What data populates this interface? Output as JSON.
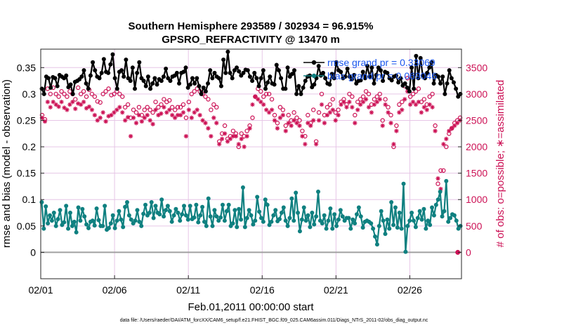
{
  "chart_data": {
    "type": "line",
    "title_line1": "Southern Hemisphere 293589 / 302934 = 96.915%",
    "title_line2": "GPSRO_REFRACTIVITY @ 13470 m",
    "xlabel": "Feb.01,2011 00:00:00 start",
    "ylabel": "rmse and bias (model - observation)",
    "ylabel_right": "# of obs: o=possible; ∗=assimilated",
    "xlim": [
      0,
      28.5
    ],
    "ylim": [
      -0.05,
      0.385
    ],
    "ylim_right": [
      -500,
      3850
    ],
    "x_ticks": [
      0,
      5,
      10,
      15,
      20,
      25
    ],
    "x_tick_labels": [
      "02/01",
      "02/06",
      "02/11",
      "02/16",
      "02/21",
      "02/26"
    ],
    "y_ticks": [
      0,
      0.05,
      0.1,
      0.15,
      0.2,
      0.25,
      0.3,
      0.35
    ],
    "y_tick_labels": [
      "0",
      "0.05",
      "0.1",
      "0.15",
      "0.2",
      "0.25",
      "0.3",
      "0.35"
    ],
    "y_right_ticks": [
      0,
      500,
      1000,
      1500,
      2000,
      2500,
      3000,
      3500
    ],
    "y_right_tick_labels": [
      "0",
      "500",
      "1000",
      "1500",
      "2000",
      "2500",
      "3000",
      "3500"
    ],
    "colors": {
      "rmse": "#000000",
      "bias": "#0f8080",
      "obs": "#cc1155",
      "zero_line": "#a0a0a0",
      "grid": "#e6c6e6"
    },
    "legend": [
      {
        "label": "rmse grand pr = 0.33069",
        "series": "rmse"
      },
      {
        "label": "bias grand pr = 0.069046",
        "series": "bias"
      }
    ],
    "series": [
      {
        "name": "rmse",
        "axis": "left",
        "marker": "filled-circle",
        "values": [
          0.31,
          0.3,
          0.333,
          0.33,
          0.312,
          0.332,
          0.33,
          0.315,
          0.336,
          0.333,
          0.33,
          0.335,
          0.313,
          0.318,
          0.3,
          0.323,
          0.325,
          0.328,
          0.333,
          0.345,
          0.32,
          0.31,
          0.335,
          0.36,
          0.345,
          0.333,
          0.33,
          0.34,
          0.366,
          0.342,
          0.34,
          0.356,
          0.375,
          0.33,
          0.31,
          0.342,
          0.345,
          0.333,
          0.365,
          0.33,
          0.325,
          0.35,
          0.31,
          0.34,
          0.36,
          0.33,
          0.325,
          0.315,
          0.333,
          0.31,
          0.32,
          0.33,
          0.318,
          0.328,
          0.325,
          0.333,
          0.348,
          0.33,
          0.325,
          0.333,
          0.335,
          0.34,
          0.32,
          0.34,
          0.342,
          0.35,
          0.312,
          0.318,
          0.33,
          0.32,
          0.33,
          0.315,
          0.3,
          0.312,
          0.305,
          0.32,
          0.345,
          0.33,
          0.34,
          0.333,
          0.33,
          0.315,
          0.365,
          0.34,
          0.38,
          0.34,
          0.33,
          0.345,
          0.35,
          0.343,
          0.335,
          0.34,
          0.346,
          0.345,
          0.333,
          0.325,
          0.34,
          0.33,
          0.315,
          0.33,
          0.345,
          0.31,
          0.322,
          0.333,
          0.32,
          0.318,
          0.355,
          0.345,
          0.33,
          0.31,
          0.31,
          0.35,
          0.333,
          0.338,
          0.345,
          0.3,
          0.315,
          0.3,
          0.312,
          0.325,
          0.333,
          0.335,
          0.313,
          0.318,
          0.33,
          0.353,
          0.335,
          0.34,
          0.33,
          0.32,
          0.318,
          0.338,
          0.33,
          0.36,
          0.345,
          0.342,
          0.33,
          0.333,
          0.348,
          0.333,
          0.328,
          0.336,
          0.32,
          0.325,
          0.326,
          0.342,
          0.33,
          0.353,
          0.333,
          0.35,
          0.32,
          0.336,
          0.35,
          0.345,
          0.325,
          0.342,
          0.34,
          0.33,
          0.326,
          0.333,
          0.335,
          0.322,
          0.33,
          0.316,
          0.32,
          0.312,
          0.305,
          0.35,
          0.31,
          0.372,
          0.33,
          0.368,
          0.335,
          0.33,
          0.34,
          0.35,
          0.36,
          0.32,
          0.336,
          0.333,
          0.32,
          0.333,
          0.3,
          0.32,
          0.345,
          0.33,
          0.322,
          0.31,
          0.295,
          0.3
        ]
      },
      {
        "name": "bias",
        "axis": "left",
        "marker": "filled-circle",
        "values": [
          0.095,
          0.045,
          0.087,
          0.055,
          0.07,
          0.06,
          0.075,
          0.05,
          0.063,
          0.08,
          0.052,
          0.057,
          0.088,
          0.045,
          0.075,
          0.05,
          0.058,
          0.038,
          0.085,
          0.06,
          0.082,
          0.068,
          0.053,
          0.046,
          0.058,
          0.06,
          0.051,
          0.083,
          0.061,
          0.05,
          0.05,
          0.088,
          0.043,
          0.046,
          0.055,
          0.07,
          0.046,
          0.06,
          0.078,
          0.062,
          0.048,
          0.086,
          0.095,
          0.07,
          0.062,
          0.055,
          0.06,
          0.08,
          0.058,
          0.05,
          0.073,
          0.09,
          0.07,
          0.075,
          0.095,
          0.065,
          0.088,
          0.075,
          0.072,
          0.1,
          0.068,
          0.08,
          0.088,
          0.078,
          0.058,
          0.07,
          0.082,
          0.075,
          0.06,
          0.072,
          0.088,
          0.07,
          0.062,
          0.088,
          0.063,
          0.066,
          0.09,
          0.057,
          0.07,
          0.086,
          0.058,
          0.05,
          0.102,
          0.068,
          0.05,
          0.08,
          0.068,
          0.06,
          0.066,
          0.09,
          0.06,
          0.078,
          0.09,
          0.05,
          0.055,
          0.08,
          0.048,
          0.082,
          0.062,
          0.123,
          0.048,
          0.065,
          0.08,
          0.07,
          0.053,
          0.06,
          0.105,
          0.077,
          0.065,
          0.058,
          0.1,
          0.09,
          0.052,
          0.058,
          0.07,
          0.08,
          0.059,
          0.063,
          0.075,
          0.085,
          0.06,
          0.05,
          0.065,
          0.102,
          0.06,
          0.113,
          0.075,
          0.04,
          0.062,
          0.085,
          0.06,
          0.07,
          0.048,
          0.075,
          0.053,
          0.068,
          0.115,
          0.06,
          0.055,
          0.07,
          0.045,
          0.06,
          0.083,
          0.045,
          0.072,
          0.05,
          0.062,
          0.08,
          0.068,
          0.06,
          0.065,
          0.065,
          0.045,
          0.062,
          0.055,
          0.072,
          0.085,
          0.068,
          0.047,
          0.058,
          0.06,
          0.058,
          0.055,
          0.045,
          0.03,
          0.015,
          0.05,
          0.078,
          0.06,
          0.035,
          0.062,
          0.045,
          0.095,
          0.052,
          0.085,
          0.047,
          0.075,
          0.045,
          0.13,
          0.001,
          0.05,
          0.06,
          0.075,
          0.06,
          0.048,
          0.065,
          0.078,
          0.062,
          0.082,
          0.045,
          0.06,
          0.052,
          0.085,
          0.07,
          0.09,
          0.1,
          0.115,
          0.068,
          0.078,
          0.135,
          0.058,
          0.065,
          0.072,
          0.07,
          0.06,
          0.045,
          0.05
        ]
      },
      {
        "name": "obs_possible",
        "axis": "right",
        "marker": "open-circle",
        "values": [
          2600,
          2520,
          3100,
          3000,
          3120,
          3000,
          2950,
          3050,
          3000,
          2950,
          3050,
          3000,
          2900,
          3120,
          3000,
          3050,
          2950,
          3080,
          3000,
          2950,
          2860,
          2840,
          3000,
          3050,
          3100,
          2980,
          3000,
          3050,
          3000,
          2950,
          2750,
          2800,
          2550,
          2700,
          2650,
          2750,
          2600,
          2700,
          2750,
          2700,
          2650,
          2850,
          2750,
          2800,
          2900,
          2850,
          2880,
          2750,
          2700,
          2750,
          2750,
          2800,
          2550,
          2850,
          3000,
          3050,
          3100,
          3050,
          3000,
          2950,
          2900,
          2700,
          2800,
          2750,
          2100,
          2250,
          2400,
          2150,
          2200,
          2300,
          2250,
          2000,
          2250,
          2200,
          2300,
          2400,
          2550,
          2950,
          3100,
          3050,
          2950,
          3000,
          3000,
          2900,
          2600,
          2450,
          2750,
          2700,
          2400,
          2600,
          2500,
          2650,
          2550,
          2500,
          2300,
          2200,
          2600,
          2450,
          2700,
          2100,
          2650,
          3000,
          2600,
          2750,
          2800,
          2900,
          2650,
          2700,
          2850,
          2900,
          2800,
          3000,
          2950,
          2600,
          2850,
          2900,
          2950,
          3050,
          3000,
          2800,
          2900,
          2950,
          3000,
          2500,
          2900,
          2750,
          2600,
          2000,
          2400,
          2800,
          2850,
          3150,
          3300,
          2950,
          3000,
          3050,
          3100,
          2850,
          2900,
          2800,
          2950,
          3000,
          2400,
          1300,
          1550,
          1550,
          2000,
          2250,
          2350,
          2450,
          2500,
          2550
        ]
      },
      {
        "name": "obs_assimilated",
        "axis": "right",
        "marker": "asterisk",
        "values": [
          2550,
          2480,
          2850,
          2750,
          2850,
          2800,
          2760,
          2850,
          2740,
          2700,
          2800,
          2850,
          2720,
          2820,
          2800,
          2850,
          2730,
          2760,
          2700,
          2600,
          2500,
          2550,
          2650,
          2480,
          2580,
          2600,
          2650,
          2700,
          2750,
          2650,
          2500,
          2560,
          2200,
          2550,
          2450,
          2600,
          2480,
          2550,
          2600,
          2500,
          2430,
          2700,
          2600,
          2630,
          2750,
          2650,
          2700,
          2600,
          2550,
          2600,
          2600,
          2650,
          2200,
          2700,
          2550,
          2650,
          2700,
          2600,
          2500,
          2450,
          2350,
          2200,
          2550,
          2450,
          2050,
          2150,
          2250,
          2100,
          2150,
          2200,
          2200,
          2050,
          2150,
          2000,
          2200,
          2350,
          2800,
          2950,
          2900,
          2850,
          2800,
          2700,
          2650,
          2700,
          2500,
          2350,
          2550,
          2600,
          2300,
          2450,
          2400,
          2500,
          2450,
          2400,
          2200,
          2050,
          2450,
          2400,
          2500,
          2050,
          2500,
          2800,
          2450,
          2600,
          2650,
          2700,
          2500,
          2600,
          2800,
          2850,
          2750,
          2850,
          2750,
          2450,
          2700,
          2800,
          2850,
          2900,
          2750,
          2650,
          2800,
          2850,
          2900,
          2400,
          2800,
          2650,
          2450,
          2050,
          2300,
          2650,
          2700,
          2900,
          3050,
          2800,
          2850,
          2800,
          2850,
          2650,
          2750,
          2700,
          2800,
          2750,
          2300,
          1400,
          1200,
          2050,
          2150,
          2300,
          2350,
          2400,
          2450,
          2500
        ]
      }
    ],
    "footer": "data file: /Users/raeder/DAI/ATM_forcXX/CAM6_setup/f.e21.FHIST_BGC.f09_025.CAM6assim.011/Diags_NTrS_2011-02/obs_diag_output.nc"
  }
}
